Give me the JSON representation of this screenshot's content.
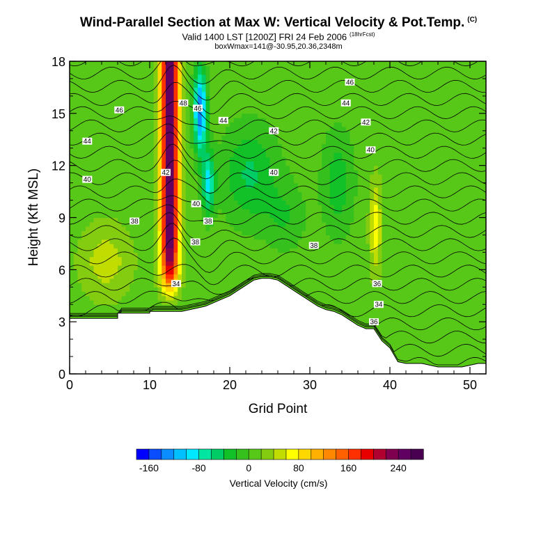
{
  "title": {
    "main": "Wind-Parallel Section at Max W: Vertical Velocity & Pot.Temp.",
    "copyright": "(C)",
    "valid": "Valid 1400 LST [1200Z] FRI 24 Feb 2006",
    "run": "(18hrFcst)",
    "box": "boxWmax=141@-30.95,20.36,2348m"
  },
  "chart_data": {
    "type": "heatmap",
    "xlabel": "Grid Point",
    "ylabel": "Height (Kft MSL)",
    "xlim": [
      0,
      52
    ],
    "ylim": [
      0,
      18
    ],
    "x_ticks": [
      "0",
      "10",
      "20",
      "30",
      "40",
      "50"
    ],
    "y_ticks": [
      "0",
      "3",
      "6",
      "9",
      "12",
      "15",
      "18"
    ],
    "colorbar": {
      "label": "Vertical Velocity (cm/s)",
      "tick_labels": [
        "-160",
        "-80",
        "0",
        "80",
        "160",
        "240"
      ],
      "min": -180,
      "max": 280,
      "step": 20,
      "colors": [
        "#0000ff",
        "#0a4cff",
        "#0b8cff",
        "#00c0ff",
        "#00e8ff",
        "#00e6a0",
        "#00cc66",
        "#12c028",
        "#36c01e",
        "#58c818",
        "#84cc10",
        "#c0dc00",
        "#ffff00",
        "#ffd800",
        "#ffb000",
        "#ff8800",
        "#ff6000",
        "#ff3000",
        "#e80000",
        "#b00030",
        "#800050",
        "#600060",
        "#4a0050"
      ]
    },
    "velocity_features": [
      {
        "name": "updraft",
        "x_center": 12.5,
        "peak": 240
      },
      {
        "name": "downdraft",
        "x_center": 16.3,
        "peak": -140
      }
    ],
    "terrain_height": {
      "x": [
        0,
        6,
        6,
        10,
        10,
        11,
        12,
        13,
        14,
        15,
        16,
        17,
        18,
        19,
        20,
        21,
        22,
        23,
        24,
        25,
        26,
        27,
        28,
        29,
        30,
        31,
        32,
        33,
        34,
        35,
        36,
        37,
        38,
        39,
        40,
        41,
        42,
        43,
        44,
        45,
        46,
        47,
        48,
        49,
        50,
        51,
        52
      ],
      "y": [
        3.2,
        3.2,
        3.5,
        3.5,
        3.6,
        3.6,
        3.6,
        3.6,
        3.6,
        3.7,
        3.8,
        3.9,
        4.1,
        4.3,
        4.5,
        4.8,
        5.1,
        5.4,
        5.5,
        5.5,
        5.4,
        5.1,
        4.8,
        4.5,
        4.2,
        3.9,
        3.7,
        3.6,
        3.4,
        3.1,
        2.8,
        2.6,
        2.6,
        1.9,
        1.5,
        0.7,
        0.6,
        0.6,
        0.6,
        0.5,
        0.4,
        0.4,
        0.4,
        0.4,
        0.5,
        0.6,
        0.6
      ]
    },
    "contour_labels": [
      {
        "text": "46",
        "x": 6.2,
        "y": 15.2
      },
      {
        "text": "44",
        "x": 2.2,
        "y": 13.4
      },
      {
        "text": "40",
        "x": 2.2,
        "y": 11.2
      },
      {
        "text": "38",
        "x": 8.1,
        "y": 8.8
      },
      {
        "text": "48",
        "x": 14.2,
        "y": 15.6
      },
      {
        "text": "46",
        "x": 16.0,
        "y": 15.3
      },
      {
        "text": "44",
        "x": 19.2,
        "y": 14.6
      },
      {
        "text": "42",
        "x": 12.0,
        "y": 11.6
      },
      {
        "text": "42",
        "x": 25.5,
        "y": 14.0
      },
      {
        "text": "40",
        "x": 15.8,
        "y": 9.8
      },
      {
        "text": "40",
        "x": 25.5,
        "y": 11.6
      },
      {
        "text": "38",
        "x": 17.3,
        "y": 8.8
      },
      {
        "text": "38",
        "x": 15.7,
        "y": 7.6
      },
      {
        "text": "38",
        "x": 30.5,
        "y": 7.4
      },
      {
        "text": "34",
        "x": 13.3,
        "y": 5.2
      },
      {
        "text": "46",
        "x": 35.0,
        "y": 16.8
      },
      {
        "text": "44",
        "x": 34.5,
        "y": 15.6
      },
      {
        "text": "42",
        "x": 37.0,
        "y": 14.5
      },
      {
        "text": "40",
        "x": 37.6,
        "y": 12.9
      },
      {
        "text": "36",
        "x": 38.4,
        "y": 5.2
      },
      {
        "text": "34",
        "x": 38.6,
        "y": 4.0
      },
      {
        "text": "36",
        "x": 38.0,
        "y": 3.0
      }
    ]
  }
}
